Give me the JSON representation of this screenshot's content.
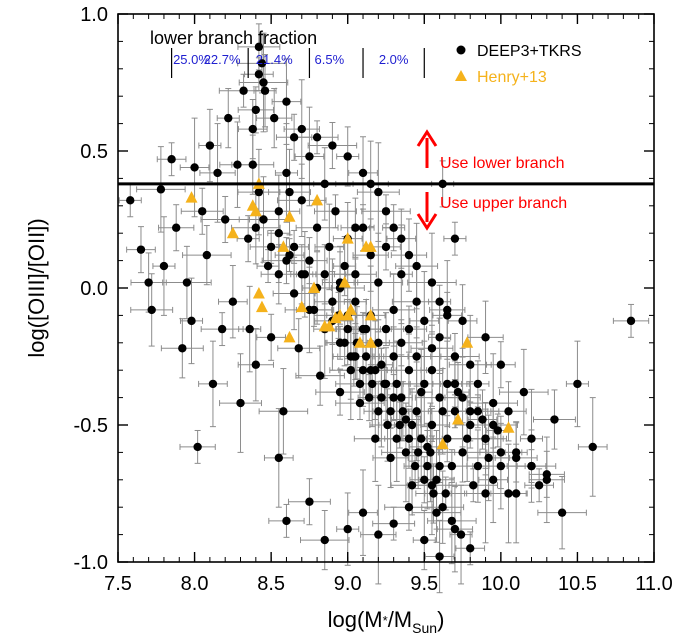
{
  "chart_data": {
    "type": "scatter",
    "title": "",
    "xlabel": {
      "main": "log(M",
      "sub1": "*",
      "mid": "/M",
      "sub2": "Sun",
      "end": ")"
    },
    "ylabel": "log([OIII]/[OII])",
    "xlim": [
      7.5,
      11.0
    ],
    "ylim": [
      -1.0,
      1.0
    ],
    "x_ticks": [
      "7.5",
      "8.0",
      "8.5",
      "9.0",
      "9.5",
      "10.0",
      "10.5",
      "11.0"
    ],
    "y_ticks": [
      "-1.0",
      "-0.5",
      "0.0",
      "0.5",
      "1.0"
    ],
    "grid": false,
    "legend_position": "top-right",
    "colors": {
      "deep3": "#000000",
      "henry": "#f5b21b",
      "fraction_text": "#1f1fd0",
      "arrow": "#ff0000",
      "errorbar": "#8c8c8c"
    },
    "threshold": {
      "y": 0.38,
      "up_label": "Use lower branch",
      "down_label": "Use upper branch"
    },
    "fraction": {
      "title": "lower branch fraction",
      "dividers_x": [
        7.85,
        8.35,
        8.75,
        9.1,
        9.5
      ],
      "labels": [
        {
          "x": 7.98,
          "text": "25.0%"
        },
        {
          "x": 8.18,
          "text": "22.7%"
        },
        {
          "x": 8.52,
          "text": "21.4%"
        },
        {
          "x": 8.88,
          "text": "6.5%"
        },
        {
          "x": 9.3,
          "text": "2.0%"
        }
      ]
    },
    "series": [
      {
        "name": "DEEP3+TKRS",
        "marker": "circle",
        "x": [
          7.58,
          7.65,
          7.7,
          7.72,
          7.78,
          7.8,
          7.85,
          7.88,
          7.92,
          7.95,
          7.98,
          8.0,
          8.02,
          8.05,
          8.08,
          8.1,
          8.12,
          8.15,
          8.18,
          8.2,
          8.22,
          8.25,
          8.28,
          8.3,
          8.32,
          8.35,
          8.38,
          8.4,
          8.42,
          8.45,
          8.48,
          8.5,
          8.52,
          8.55,
          8.58,
          8.6,
          8.62,
          8.65,
          8.68,
          8.7,
          8.72,
          8.75,
          8.78,
          8.8,
          8.82,
          8.85,
          8.88,
          8.9,
          8.92,
          8.95,
          8.98,
          9.0,
          9.02,
          9.05,
          9.08,
          9.1,
          9.12,
          9.15,
          9.18,
          9.2,
          9.22,
          9.25,
          9.28,
          9.3,
          9.32,
          9.35,
          9.38,
          9.4,
          9.42,
          9.45,
          9.48,
          9.5,
          9.52,
          9.55,
          9.58,
          9.6,
          9.62,
          9.65,
          9.68,
          9.7,
          9.72,
          9.75,
          9.78,
          9.8,
          9.82,
          9.85,
          9.88,
          9.9,
          9.92,
          9.95,
          9.98,
          10.0,
          10.05,
          10.1,
          10.15,
          10.2,
          10.25,
          10.3,
          10.35,
          10.4,
          10.5,
          10.6,
          10.85,
          8.42,
          8.44,
          8.46,
          8.6,
          8.7,
          8.8,
          8.9,
          9.0,
          9.1,
          9.15,
          9.2,
          9.25,
          9.3,
          9.35,
          9.4,
          9.45,
          9.55,
          9.6,
          9.65,
          8.55,
          8.65,
          8.75,
          8.85,
          8.95,
          9.05,
          9.15,
          9.25,
          9.35,
          9.45,
          9.55,
          9.65,
          9.75,
          9.85,
          9.95,
          10.05,
          8.5,
          8.6,
          8.7,
          8.8,
          8.9,
          9.0,
          9.1,
          9.2,
          9.3,
          9.4,
          9.5,
          9.6,
          9.7,
          9.8,
          9.9,
          10.0,
          8.45,
          8.55,
          8.65,
          8.75,
          8.85,
          8.95,
          9.05,
          9.15,
          9.25,
          9.35,
          9.45,
          9.55,
          9.65,
          9.75,
          9.85,
          9.95,
          10.1,
          10.2,
          10.3,
          9.02,
          9.08,
          9.14,
          9.2,
          9.26,
          9.32,
          9.38,
          9.44,
          9.5,
          9.56,
          9.62,
          9.68,
          9.74,
          9.8,
          8.98,
          9.04,
          9.1,
          9.16,
          9.22,
          9.28,
          9.34,
          9.4,
          9.46,
          9.52,
          9.58,
          9.64,
          8.94,
          9.0,
          9.06,
          9.12,
          9.18,
          9.24,
          9.3,
          9.36,
          9.42,
          9.48,
          9.54,
          9.6,
          9.7,
          9.8,
          9.9,
          10.0,
          10.1,
          8.42,
          8.4,
          8.38,
          8.4,
          8.36,
          8.55,
          8.6,
          8.75,
          8.85,
          9.0,
          9.1,
          9.2,
          9.3,
          9.4,
          9.5,
          9.6,
          9.7,
          9.9,
          10.2,
          9.62,
          9.05,
          8.95,
          8.62,
          9.55,
          9.7
        ],
        "y": [
          0.32,
          0.14,
          0.02,
          -0.08,
          0.36,
          0.08,
          0.47,
          0.22,
          -0.22,
          0.02,
          -0.12,
          0.44,
          -0.58,
          0.28,
          0.12,
          0.52,
          -0.35,
          0.42,
          -0.15,
          0.25,
          0.62,
          -0.05,
          0.45,
          -0.42,
          0.72,
          0.18,
          0.58,
          -0.28,
          0.35,
          0.75,
          0.08,
          -0.18,
          0.62,
          0.28,
          -0.45,
          0.42,
          0.12,
          0.55,
          -0.22,
          0.32,
          0.05,
          0.48,
          -0.08,
          0.22,
          -0.32,
          0.38,
          0.15,
          -0.12,
          0.28,
          -0.38,
          0.08,
          0.18,
          -0.25,
          0.05,
          -0.42,
          0.22,
          -0.15,
          0.12,
          -0.55,
          0.02,
          -0.28,
          0.15,
          -0.62,
          -0.08,
          -0.35,
          0.05,
          -0.48,
          -0.15,
          -0.72,
          -0.05,
          -0.38,
          -0.12,
          -0.58,
          -0.22,
          -0.82,
          -0.18,
          -0.45,
          -0.08,
          -0.65,
          -0.25,
          -0.38,
          -0.12,
          -0.55,
          -0.28,
          -0.72,
          -0.35,
          -0.48,
          -0.18,
          -0.62,
          -0.42,
          -0.52,
          -0.28,
          -0.45,
          -0.62,
          -0.38,
          -0.55,
          -0.72,
          -0.68,
          -0.48,
          -0.82,
          -0.35,
          -0.58,
          -0.12,
          0.88,
          0.82,
          0.72,
          0.68,
          0.58,
          0.55,
          0.52,
          0.48,
          0.42,
          0.38,
          0.35,
          0.28,
          0.22,
          0.18,
          0.12,
          0.08,
          0.02,
          -0.05,
          -0.1,
          0.05,
          -0.02,
          -0.08,
          -0.15,
          -0.2,
          -0.25,
          -0.3,
          -0.35,
          -0.4,
          -0.45,
          -0.5,
          -0.55,
          -0.6,
          -0.65,
          -0.7,
          -0.75,
          0.15,
          0.1,
          0.05,
          0.0,
          -0.05,
          -0.1,
          -0.15,
          -0.2,
          -0.25,
          -0.3,
          -0.35,
          -0.4,
          -0.45,
          -0.5,
          -0.55,
          -0.6,
          0.25,
          0.2,
          0.15,
          0.1,
          0.05,
          0.0,
          -0.05,
          -0.1,
          -0.15,
          -0.2,
          -0.25,
          -0.3,
          -0.35,
          -0.4,
          -0.45,
          -0.5,
          -0.6,
          -0.65,
          -0.7,
          -0.3,
          -0.35,
          -0.4,
          -0.45,
          -0.5,
          -0.55,
          -0.6,
          -0.65,
          -0.7,
          -0.75,
          -0.8,
          -0.85,
          -0.9,
          -0.95,
          -0.2,
          -0.25,
          -0.3,
          -0.35,
          -0.4,
          -0.45,
          -0.5,
          -0.55,
          -0.6,
          -0.65,
          -0.7,
          -0.75,
          -0.1,
          -0.15,
          -0.2,
          -0.25,
          -0.3,
          -0.35,
          -0.4,
          -0.45,
          -0.5,
          -0.55,
          -0.6,
          -0.65,
          -0.35,
          -0.45,
          -0.55,
          -0.65,
          -0.75,
          0.78,
          0.65,
          0.45,
          0.22,
          -0.15,
          -0.62,
          -0.85,
          -0.78,
          -0.92,
          -0.88,
          -0.82,
          -0.9,
          -0.86,
          -0.8,
          -0.92,
          -0.98,
          -0.88,
          -0.75,
          -0.65,
          0.38,
          0.22,
          0.02,
          0.35,
          -0.72,
          0.18
        ],
        "xerr": 0.12,
        "yerr": 0.12
      },
      {
        "name": "Henry+13",
        "marker": "triangle",
        "x": [
          7.98,
          8.25,
          8.38,
          8.4,
          8.42,
          8.44,
          8.58,
          8.62,
          8.62,
          8.7,
          8.78,
          8.8,
          8.85,
          8.88,
          8.92,
          8.95,
          8.98,
          9.0,
          9.0,
          9.02,
          9.08,
          9.12,
          9.15,
          9.15,
          9.15,
          9.62,
          9.72,
          9.78,
          10.05,
          8.42
        ],
        "y": [
          0.33,
          0.2,
          0.3,
          0.28,
          -0.02,
          -0.07,
          0.15,
          0.26,
          -0.18,
          -0.07,
          0.0,
          0.32,
          -0.14,
          -0.14,
          -0.11,
          -0.1,
          0.02,
          0.18,
          -0.1,
          -0.08,
          -0.2,
          0.15,
          -0.1,
          -0.2,
          0.15,
          -0.57,
          -0.48,
          -0.2,
          -0.51,
          0.38
        ]
      }
    ]
  }
}
